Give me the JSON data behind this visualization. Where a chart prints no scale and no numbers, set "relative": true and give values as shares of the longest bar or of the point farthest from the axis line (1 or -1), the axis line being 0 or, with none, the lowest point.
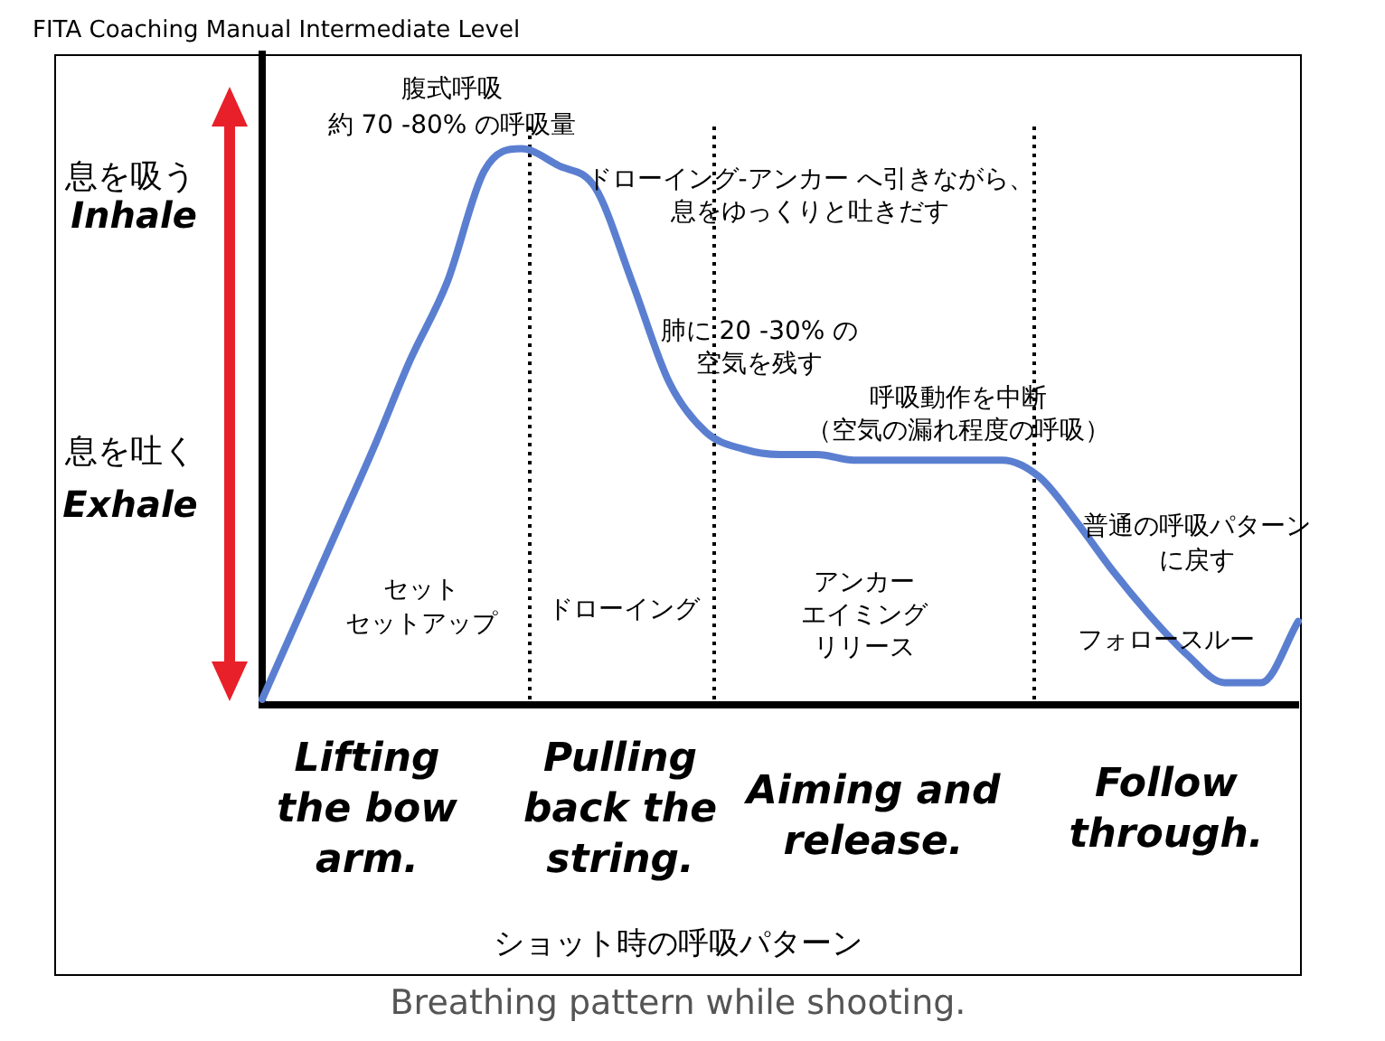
{
  "chart_data": {
    "type": "line",
    "title": "FITA Coaching Manual Intermediate Level",
    "relative": true,
    "grid": false,
    "legend": false,
    "marker": "none",
    "line_style": "solid",
    "tick_labels": false,
    "categories": [
      null,
      null,
      null,
      null,
      null,
      null,
      null,
      null,
      null,
      null,
      null,
      null,
      null,
      null,
      null,
      null,
      null,
      null,
      null,
      null,
      null,
      null,
      null,
      null,
      null,
      null,
      null,
      null,
      null
    ],
    "series": [
      {
        "color": "#5b7fd0",
        "values": [
          0.01,
          0.16,
          0.31,
          0.46,
          0.62,
          0.76,
          0.96,
          1.0,
          0.97,
          0.93,
          0.76,
          0.58,
          0.49,
          0.46,
          0.45,
          0.45,
          0.44,
          0.44,
          0.44,
          0.44,
          0.44,
          0.41,
          0.33,
          0.24,
          0.16,
          0.09,
          0.04,
          0.04,
          0.15
        ]
      }
    ],
    "annotations": [
      "腹式呼吸",
      "約 70 -80% の呼吸量",
      "ドローイング-アンカー へ引きながら、",
      "息をゆっくりと吐きだす",
      "肺に 20 -30% の",
      "空気を残す",
      "呼吸動作を中断",
      "（空気の漏れ程度の呼吸）",
      "普通の呼吸パターン",
      "に戻す",
      "セット",
      "セットアップ",
      "ドローイング",
      "アンカー",
      "エイミング",
      "リリース",
      "フォロースルー",
      "息を吸う",
      "Inhale",
      "息を吐く",
      "Exhale",
      "Lifting\nthe bow\narm.",
      "Pulling\nback the\nstring.",
      "Aiming and\nrelease.",
      "Follow\nthrough.",
      "ショット時の呼吸パターン",
      "Breathing pattern while shooting."
    ]
  }
}
